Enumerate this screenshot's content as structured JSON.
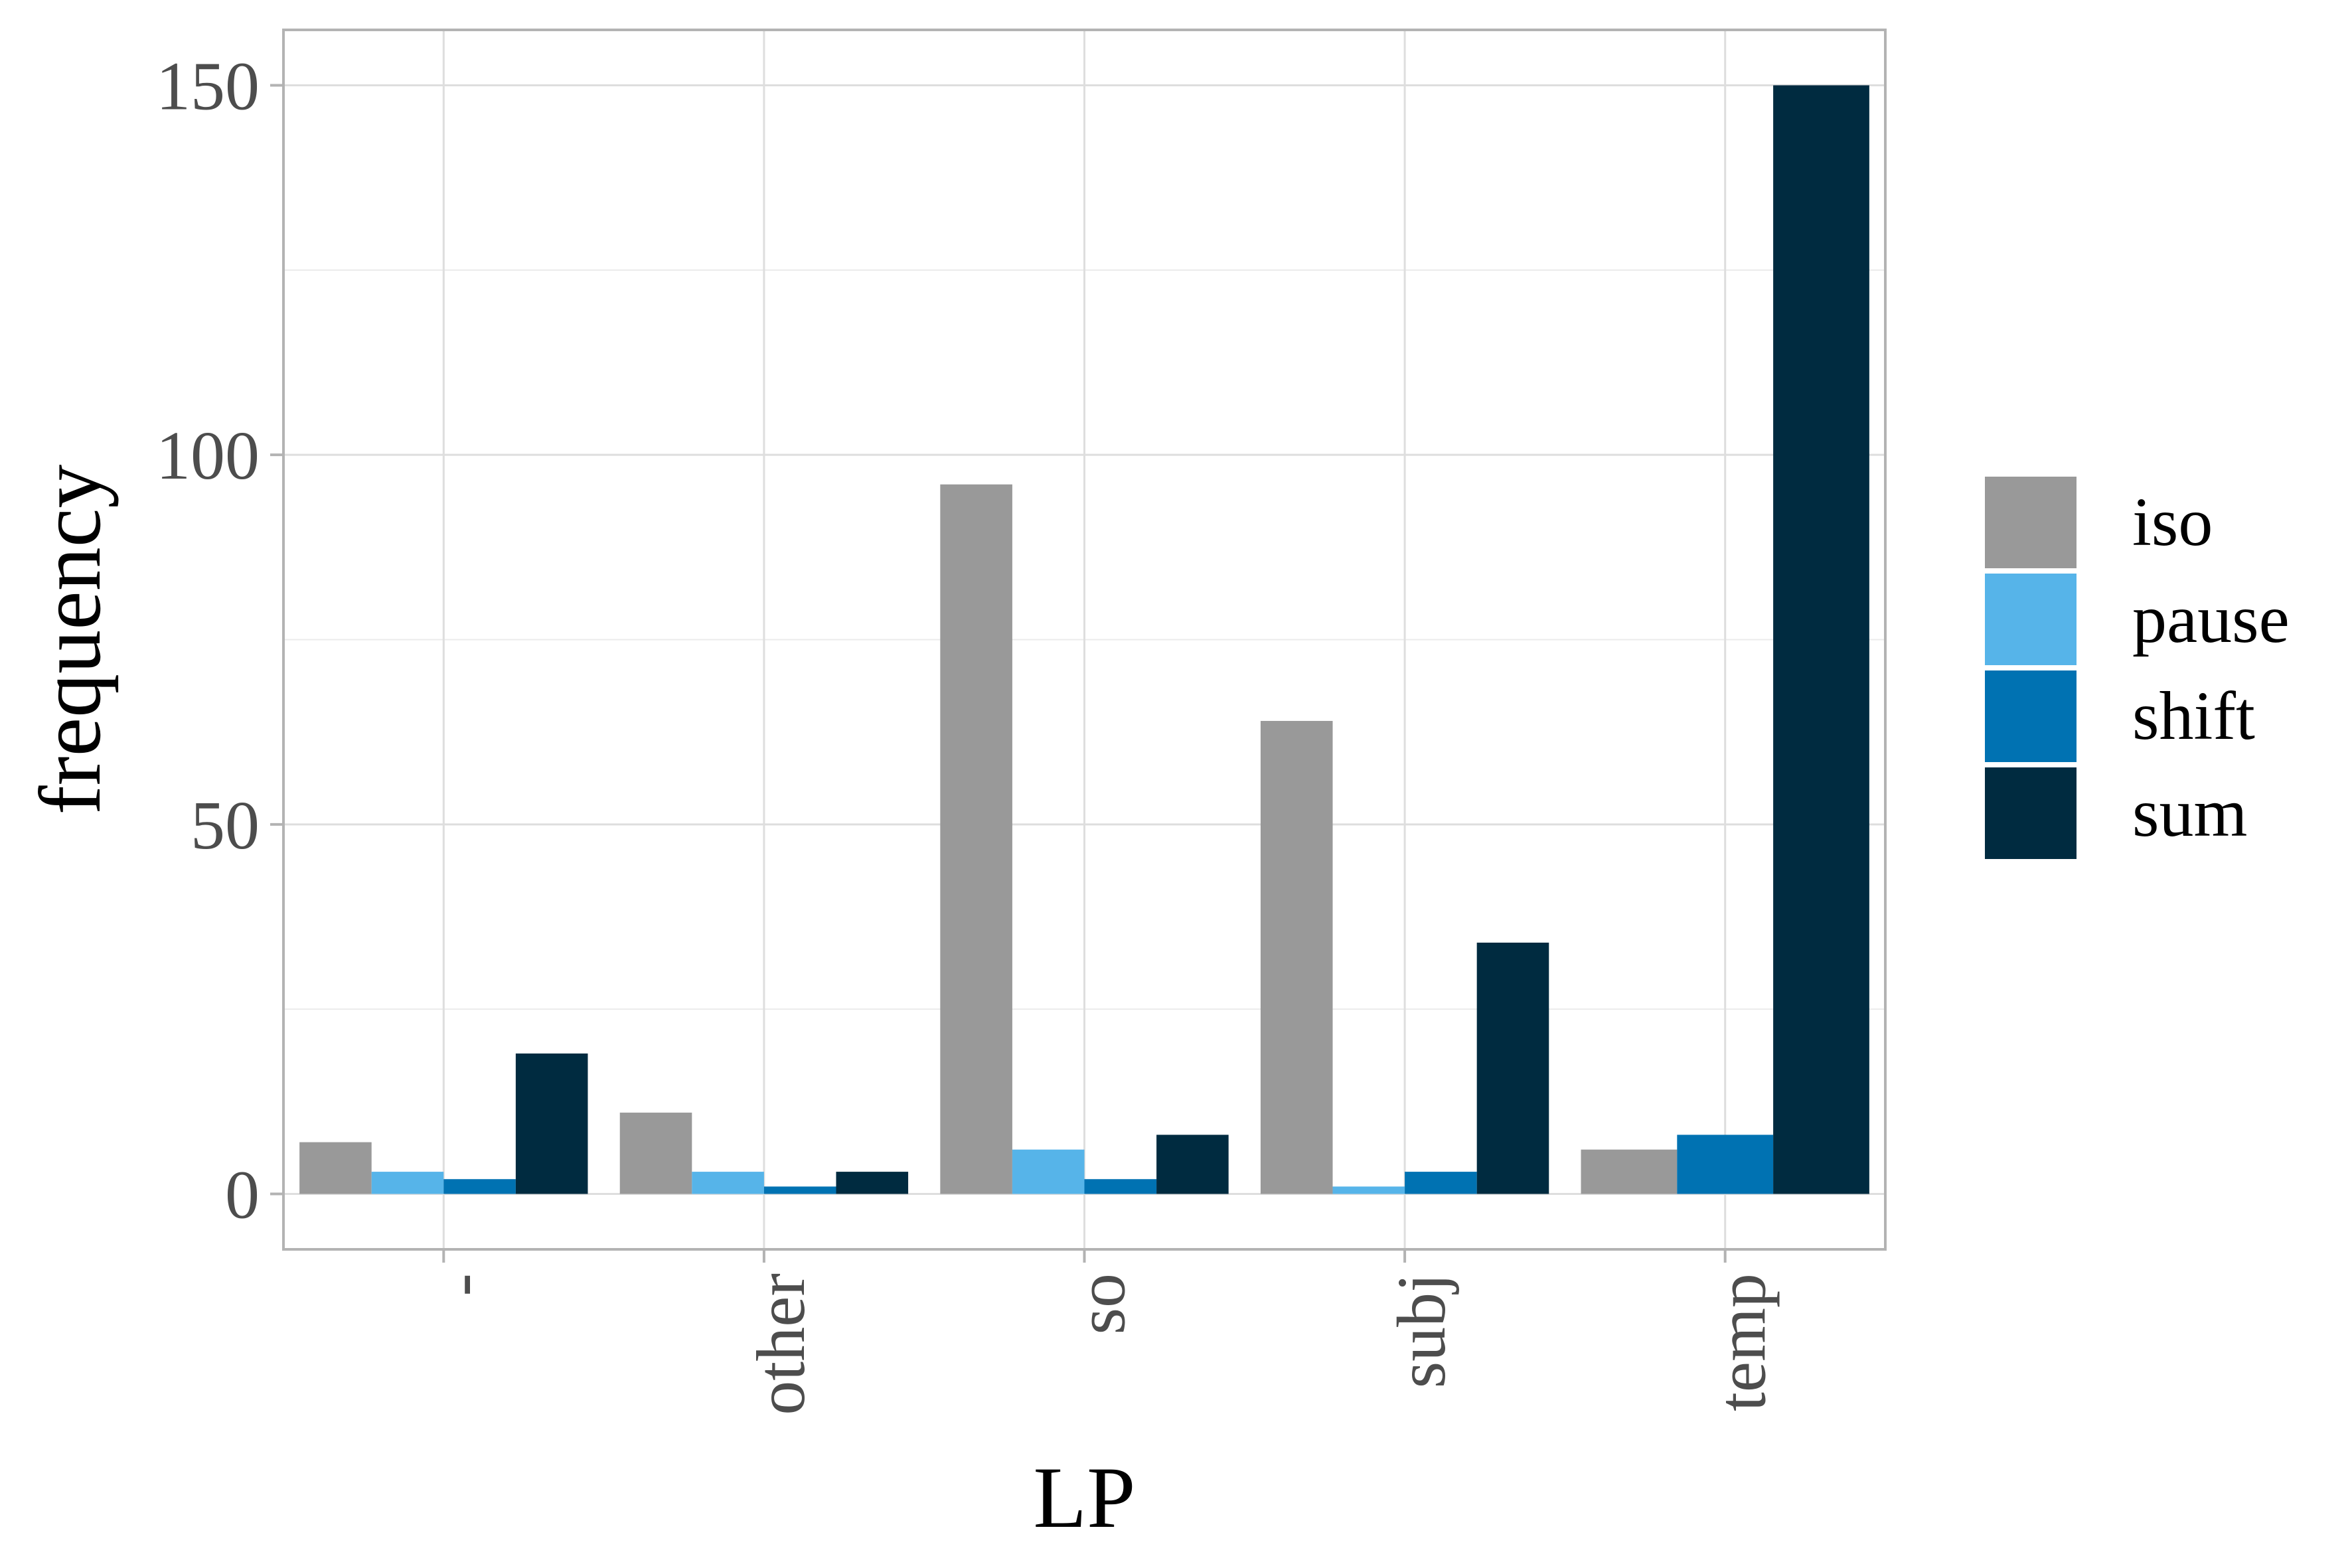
{
  "chart_data": {
    "type": "bar",
    "xlabel": "LP",
    "ylabel": "frequency",
    "categories": [
      "-",
      "other",
      "so",
      "subj",
      "temp"
    ],
    "ylim": [
      -7.5,
      157.5
    ],
    "y_ticks": [
      0,
      50,
      100,
      150
    ],
    "grid": true,
    "legend_position": "right",
    "series": [
      {
        "name": "iso",
        "color": "#999999",
        "values": [
          7,
          11,
          96,
          64,
          6
        ]
      },
      {
        "name": "pause",
        "color": "#56B4E9",
        "values": [
          3,
          3,
          6,
          1,
          null
        ]
      },
      {
        "name": "shift",
        "color": "#0072B2",
        "values": [
          2,
          1,
          2,
          3,
          8
        ]
      },
      {
        "name": "sum",
        "color": "#002B40",
        "values": [
          19,
          3,
          8,
          34,
          150
        ]
      }
    ]
  }
}
